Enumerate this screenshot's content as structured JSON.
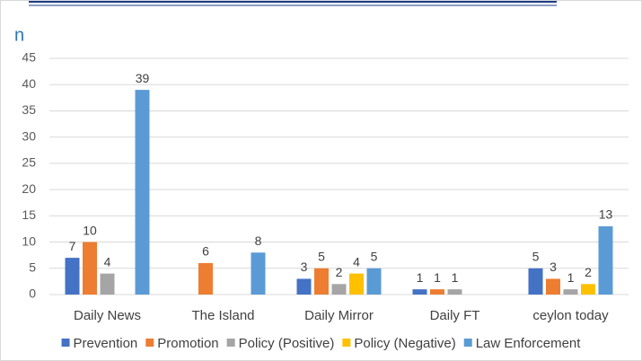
{
  "chart_data": {
    "type": "bar",
    "y_label": "n",
    "categories": [
      "Daily News",
      "The Island",
      "Daily Mirror",
      "Daily FT",
      "ceylon today"
    ],
    "series": [
      {
        "name": "Prevention",
        "color": "#4472c4",
        "values": [
          7,
          null,
          3,
          1,
          5
        ]
      },
      {
        "name": "Promotion",
        "color": "#ed7d31",
        "values": [
          10,
          6,
          5,
          1,
          3
        ]
      },
      {
        "name": "Policy (Positive)",
        "color": "#a5a5a5",
        "values": [
          4,
          null,
          2,
          1,
          1
        ]
      },
      {
        "name": "Policy (Negative)",
        "color": "#ffc000",
        "values": [
          null,
          null,
          4,
          null,
          2
        ]
      },
      {
        "name": "Law Enforcement",
        "color": "#5b9bd5",
        "values": [
          39,
          8,
          5,
          null,
          13
        ]
      }
    ],
    "ylim": [
      0,
      45
    ],
    "yticks": [
      0,
      5,
      10,
      15,
      20,
      25,
      30,
      35,
      40,
      45
    ],
    "grid": true,
    "legend": "bottom"
  }
}
